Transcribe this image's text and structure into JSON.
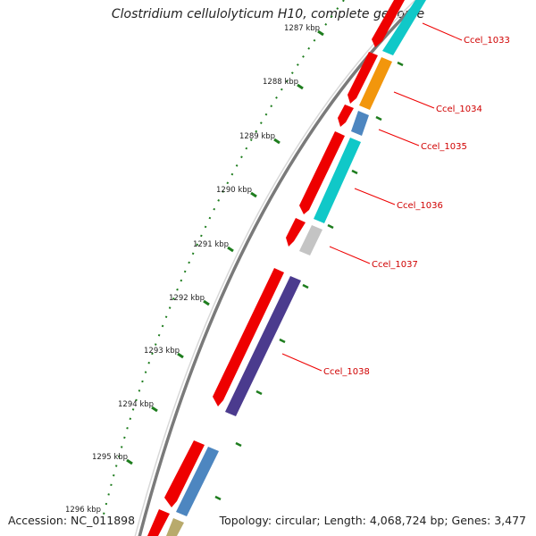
{
  "title": "Clostridium cellulolyticum H10, complete genome",
  "footer": {
    "accession": "Accession: NC_011898",
    "summary": "Topology: circular; Length: 4,068,724 bp; Genes: 3,477"
  },
  "ticks": [
    {
      "label": "1287 kbp"
    },
    {
      "label": "1288 kbp"
    },
    {
      "label": "1289 kbp"
    },
    {
      "label": "1290 kbp"
    },
    {
      "label": "1291 kbp"
    },
    {
      "label": "1292 kbp"
    },
    {
      "label": "1293 kbp"
    },
    {
      "label": "1294 kbp"
    },
    {
      "label": "1295 kbp"
    },
    {
      "label": "1296 kbp"
    }
  ],
  "genes": [
    {
      "label": "Ccel_1033"
    },
    {
      "label": "Ccel_1034"
    },
    {
      "label": "Ccel_1035"
    },
    {
      "label": "Ccel_1036"
    },
    {
      "label": "Ccel_1037"
    },
    {
      "label": "Ccel_1038"
    }
  ],
  "colors": {
    "cds": "#ee0000",
    "backbone": "#7a7a7a",
    "tick": "#1e7d1e",
    "label": "#d00000",
    "cyan": "#10c8c8",
    "orange": "#f2960c",
    "steelblue": "#4d86c0",
    "lightgray": "#c4c4c4",
    "purple": "#4b3b8e",
    "khaki": "#b8aa6c"
  }
}
